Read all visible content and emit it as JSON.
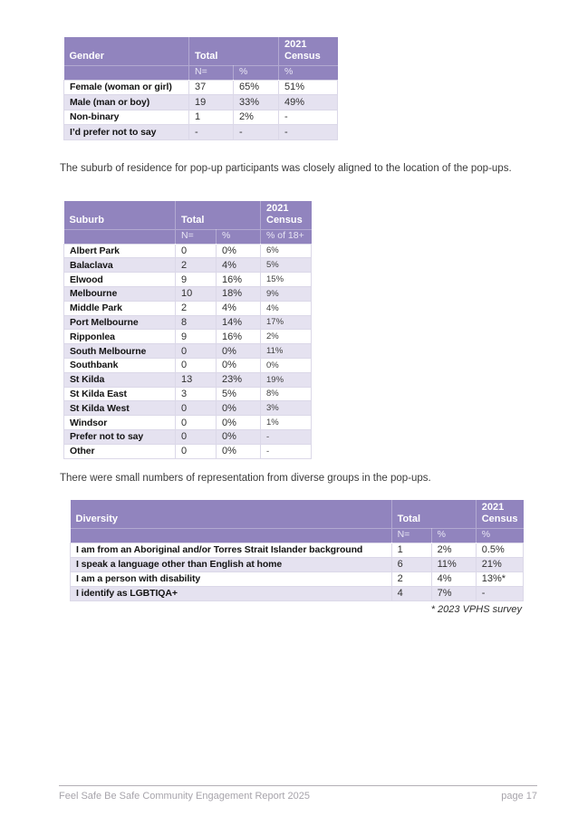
{
  "colors": {
    "header_purple": "#9184BE",
    "row_alt": "#E5E2F0",
    "footer_gray": "#A7A4AB"
  },
  "paragraphs": {
    "suburb_intro": "The suburb of residence for pop-up participants was closely aligned to the location of the pop-ups.",
    "diversity_intro": "There were small numbers of representation from diverse groups in the pop-ups."
  },
  "tables": {
    "gender": {
      "header": {
        "label": "Gender",
        "total": "Total",
        "census": "2021 Census"
      },
      "sub": {
        "n": "N=",
        "pct": "%",
        "census": "%"
      },
      "rows": [
        {
          "label": "Female (woman or girl)",
          "n": "37",
          "pct": "65%",
          "census": "51%"
        },
        {
          "label": "Male (man or boy)",
          "n": "19",
          "pct": "33%",
          "census": "49%"
        },
        {
          "label": "Non-binary",
          "n": "1",
          "pct": "2%",
          "census": "-"
        },
        {
          "label": "I’d prefer not to say",
          "n": "-",
          "pct": "-",
          "census": "-"
        }
      ]
    },
    "suburb": {
      "header": {
        "label": "Suburb",
        "total": "Total",
        "census": "2021 Census"
      },
      "sub": {
        "n": "N=",
        "pct": "%",
        "census": "% of 18+"
      },
      "rows": [
        {
          "label": "Albert Park",
          "n": "0",
          "pct": "0%",
          "census": "6%"
        },
        {
          "label": "Balaclava",
          "n": "2",
          "pct": "4%",
          "census": "5%"
        },
        {
          "label": "Elwood",
          "n": "9",
          "pct": "16%",
          "census": "15%"
        },
        {
          "label": "Melbourne",
          "n": "10",
          "pct": "18%",
          "census": "9%"
        },
        {
          "label": "Middle Park",
          "n": "2",
          "pct": "4%",
          "census": "4%"
        },
        {
          "label": "Port Melbourne",
          "n": "8",
          "pct": "14%",
          "census": "17%"
        },
        {
          "label": "Ripponlea",
          "n": "9",
          "pct": "16%",
          "census": "2%"
        },
        {
          "label": "South Melbourne",
          "n": "0",
          "pct": "0%",
          "census": "11%"
        },
        {
          "label": "Southbank",
          "n": "0",
          "pct": "0%",
          "census": "0%"
        },
        {
          "label": "St Kilda",
          "n": "13",
          "pct": "23%",
          "census": "19%"
        },
        {
          "label": "St Kilda East",
          "n": "3",
          "pct": "5%",
          "census": "8%"
        },
        {
          "label": "St Kilda West",
          "n": "0",
          "pct": "0%",
          "census": "3%"
        },
        {
          "label": "Windsor",
          "n": "0",
          "pct": "0%",
          "census": "1%"
        },
        {
          "label": "Prefer not to say",
          "n": "0",
          "pct": "0%",
          "census": "-"
        },
        {
          "label": "Other",
          "n": "0",
          "pct": "0%",
          "census": "-"
        }
      ]
    },
    "diversity": {
      "header": {
        "label": "Diversity",
        "total": "Total",
        "census": "2021 Census"
      },
      "sub": {
        "n": "N=",
        "pct": "%",
        "census": "%"
      },
      "rows": [
        {
          "label": "I am from an Aboriginal and/or Torres Strait Islander background",
          "n": "1",
          "pct": "2%",
          "census": "0.5%"
        },
        {
          "label": "I speak a language other than English at home",
          "n": "6",
          "pct": "11%",
          "census": "21%"
        },
        {
          "label": "I am a person with disability",
          "n": "2",
          "pct": "4%",
          "census": "13%*"
        },
        {
          "label": "I identify as LGBTIQA+",
          "n": "4",
          "pct": "7%",
          "census": "-"
        }
      ]
    }
  },
  "footnote": "* 2023 VPHS survey",
  "footer": {
    "left": "Feel Safe Be Safe Community Engagement Report 2025",
    "right": "page 17"
  }
}
